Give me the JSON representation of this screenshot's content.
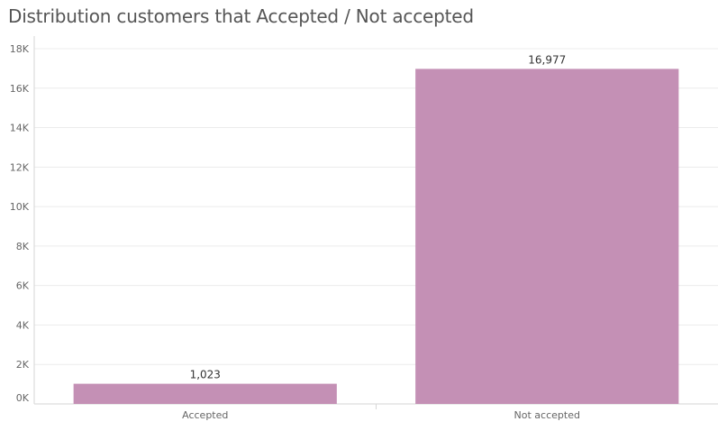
{
  "title": "Distribution customers that Accepted / Not accepted",
  "colors": {
    "bar": "#c490b5",
    "grid": "#ececec",
    "axis": "#d6d6d6",
    "tick_text": "#666666",
    "label_text": "#333333"
  },
  "chart_data": {
    "type": "bar",
    "title": "Distribution customers that Accepted / Not accepted",
    "categories": [
      "Accepted",
      "Not accepted"
    ],
    "values": [
      1023,
      16977
    ],
    "data_labels": [
      "1,023",
      "16,977"
    ],
    "xlabel": "",
    "ylabel": "",
    "ylim": [
      0,
      18000
    ],
    "yticks": [
      0,
      2000,
      4000,
      6000,
      8000,
      10000,
      12000,
      14000,
      16000,
      18000
    ],
    "ytick_labels": [
      "0K",
      "2K",
      "4K",
      "6K",
      "8K",
      "10K",
      "12K",
      "14K",
      "16K",
      "18K"
    ],
    "grid": true,
    "legend": "none"
  }
}
